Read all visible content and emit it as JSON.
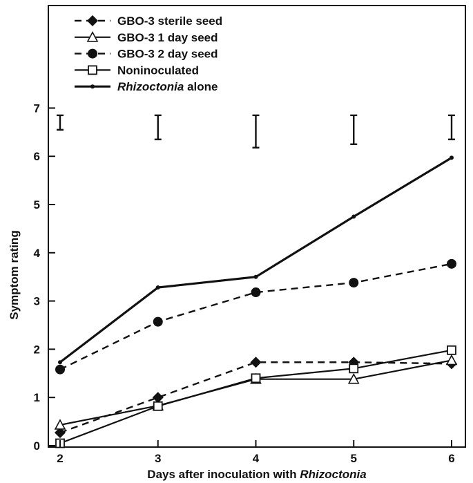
{
  "chart_data": {
    "type": "line",
    "x": [
      2,
      3,
      4,
      5,
      6
    ],
    "xlabel": {
      "prefix": "Days after inoculation with ",
      "italic": "Rhizoctonia"
    },
    "ylabel": "Symptom rating",
    "xlim": [
      2,
      6
    ],
    "ylim": [
      0,
      7.5
    ],
    "x_ticks": [
      "2",
      "3",
      "4",
      "5",
      "6"
    ],
    "y_ticks": [
      "0",
      "1",
      "2",
      "3",
      "4",
      "5",
      "6",
      "7"
    ],
    "grid": false,
    "legend_position": "top-left",
    "series": [
      {
        "name": "GBO-3  sterile seed",
        "values": [
          0.27,
          1.0,
          1.73,
          1.73,
          1.7
        ],
        "line": "dashed",
        "marker": "diamond-filled"
      },
      {
        "name": "GBO-3  1 day seed",
        "values": [
          0.43,
          0.83,
          1.38,
          1.38,
          1.77
        ],
        "line": "solid",
        "marker": "triangle-open"
      },
      {
        "name": "GBO-3  2 day seed",
        "values": [
          1.58,
          2.57,
          3.18,
          3.38,
          3.77
        ],
        "line": "dashed",
        "marker": "circle-filled"
      },
      {
        "name": "Noninoculated",
        "values": [
          0.05,
          0.82,
          1.4,
          1.6,
          1.98
        ],
        "line": "solid",
        "marker": "square-open"
      },
      {
        "name": "alone",
        "name_italic": "Rhizoctonia",
        "values": [
          1.73,
          3.28,
          3.5,
          4.75,
          5.97
        ],
        "line": "solid-thick",
        "marker": "dot-small"
      }
    ],
    "error_bars": [
      {
        "x": 2,
        "low": 6.55,
        "high": 6.85
      },
      {
        "x": 3,
        "low": 6.35,
        "high": 6.85
      },
      {
        "x": 4,
        "low": 6.18,
        "high": 6.85
      },
      {
        "x": 5,
        "low": 6.25,
        "high": 6.85
      },
      {
        "x": 6,
        "low": 6.35,
        "high": 6.85
      }
    ]
  }
}
